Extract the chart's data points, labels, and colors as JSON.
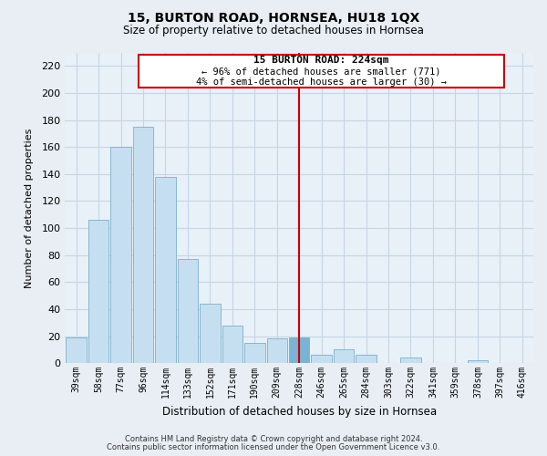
{
  "title": "15, BURTON ROAD, HORNSEA, HU18 1QX",
  "subtitle": "Size of property relative to detached houses in Hornsea",
  "xlabel": "Distribution of detached houses by size in Hornsea",
  "ylabel": "Number of detached properties",
  "bar_labels": [
    "39sqm",
    "58sqm",
    "77sqm",
    "96sqm",
    "114sqm",
    "133sqm",
    "152sqm",
    "171sqm",
    "190sqm",
    "209sqm",
    "228sqm",
    "246sqm",
    "265sqm",
    "284sqm",
    "303sqm",
    "322sqm",
    "341sqm",
    "359sqm",
    "378sqm",
    "397sqm",
    "416sqm"
  ],
  "bar_values": [
    19,
    106,
    160,
    175,
    138,
    77,
    44,
    28,
    15,
    18,
    19,
    6,
    10,
    6,
    0,
    4,
    0,
    0,
    2,
    0,
    0
  ],
  "bar_color": "#c6dff0",
  "highlight_bar_index": 10,
  "highlight_color": "#7ab3d4",
  "vline_color": "#cc0000",
  "annotation_title": "15 BURTON ROAD: 224sqm",
  "annotation_line1": "← 96% of detached houses are smaller (771)",
  "annotation_line2": "4% of semi-detached houses are larger (30) →",
  "annotation_box_facecolor": "#ffffff",
  "annotation_box_edgecolor": "#cc0000",
  "ylim": [
    0,
    230
  ],
  "yticks": [
    0,
    20,
    40,
    60,
    80,
    100,
    120,
    140,
    160,
    180,
    200,
    220
  ],
  "footnote1": "Contains HM Land Registry data © Crown copyright and database right 2024.",
  "footnote2": "Contains public sector information licensed under the Open Government Licence v3.0.",
  "bg_color": "#e8eef4",
  "plot_bg_color": "#e8f0f8",
  "grid_color": "#c5d5e5"
}
